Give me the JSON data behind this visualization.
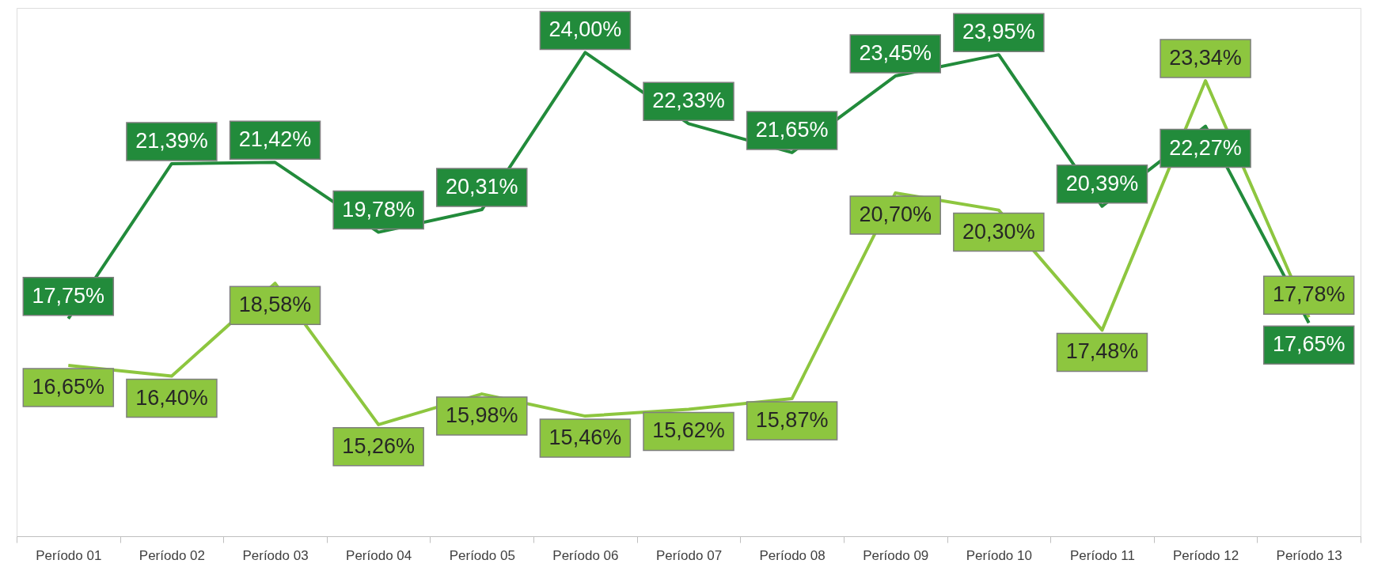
{
  "chart_data": {
    "type": "line",
    "categories": [
      "Período 01",
      "Período 02",
      "Período 03",
      "Período 04",
      "Período 05",
      "Período 06",
      "Período 07",
      "Período 08",
      "Período 09",
      "Período 10",
      "Período 11",
      "Período 12",
      "Período 13"
    ],
    "series": [
      {
        "color": "#228b3b",
        "values": [
          17.75,
          21.39,
          21.42,
          19.78,
          20.31,
          24.0,
          22.33,
          21.65,
          23.45,
          23.95,
          20.39,
          22.27,
          17.65
        ],
        "value_labels": [
          "17,75%",
          "21,39%",
          "21,42%",
          "19,78%",
          "20,31%",
          "24,00%",
          "22,33%",
          "21,65%",
          "23,45%",
          "23,95%",
          "20,39%",
          "22,27%",
          "17,65%"
        ]
      },
      {
        "color": "#8dc63f",
        "values": [
          16.65,
          16.4,
          18.58,
          15.26,
          15.98,
          15.46,
          15.62,
          15.87,
          20.7,
          20.3,
          17.48,
          23.34,
          17.78
        ],
        "value_labels": [
          "16,65%",
          "16,40%",
          "18,58%",
          "15,26%",
          "15,98%",
          "15,46%",
          "15,62%",
          "15,87%",
          "20,70%",
          "20,30%",
          "17,48%",
          "23,34%",
          "17,78%"
        ]
      }
    ],
    "data_labels": true,
    "grid": false,
    "legend": false,
    "line_style": "solid"
  }
}
